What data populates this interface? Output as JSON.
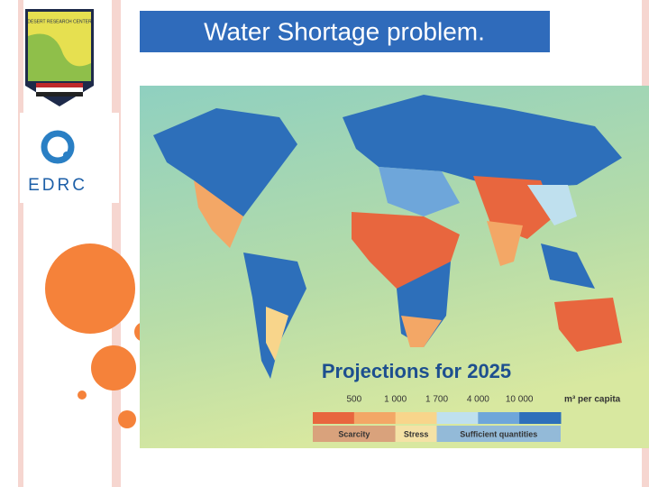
{
  "slide": {
    "title": "Water Shortage problem.",
    "logos": {
      "center_name": "DESERT RESEARCH CENTER",
      "acronym": "EDRC"
    },
    "map": {
      "title": "Projections for 2025",
      "legend": {
        "thresholds": [
          "500",
          "1 000",
          "1 700",
          "4 000",
          "10 000"
        ],
        "unit": "m³ per capita",
        "colors": [
          "#e8663e",
          "#f3a766",
          "#f8d58b",
          "#bfe0ee",
          "#6ea6da",
          "#2d6fba"
        ],
        "classes": [
          {
            "label": "Scarcity",
            "color": "#d9a27c"
          },
          {
            "label": "Stress",
            "color": "#f4e2a6"
          },
          {
            "label": "Sufficient quantities",
            "color": "#93bad8"
          }
        ]
      }
    }
  }
}
